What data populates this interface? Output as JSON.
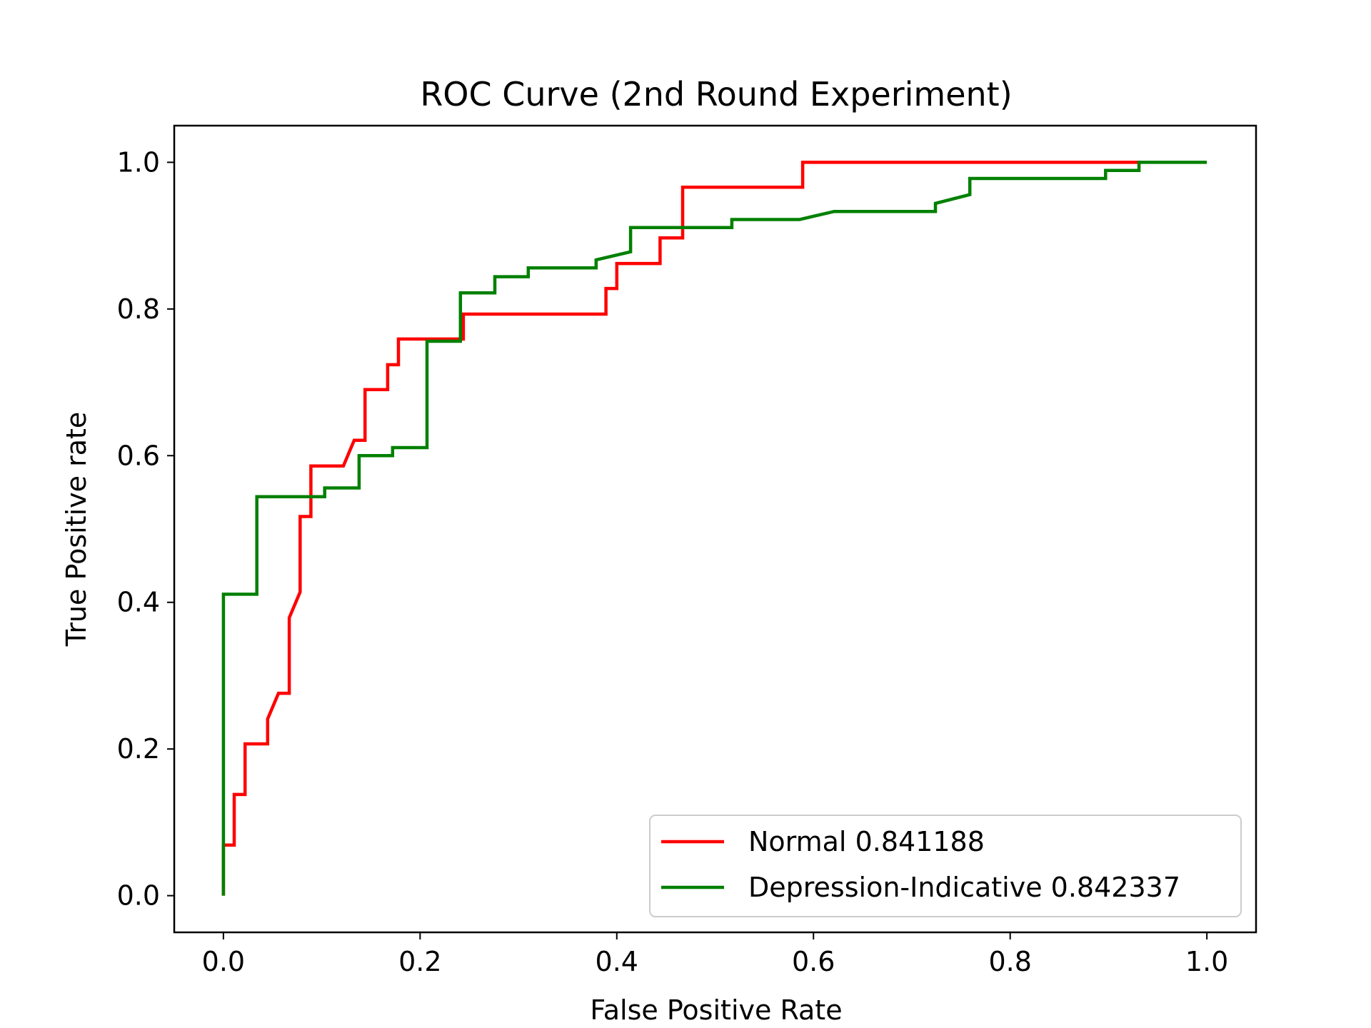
{
  "chart_data": {
    "type": "line",
    "title": "ROC Curve (2nd Round Experiment)",
    "xlabel": "False Positive Rate",
    "ylabel": "True Positive rate",
    "xlim": [
      -0.05,
      1.05
    ],
    "ylim": [
      -0.05,
      1.05
    ],
    "xticks": [
      "0.0",
      "0.2",
      "0.4",
      "0.6",
      "0.8",
      "1.0"
    ],
    "yticks": [
      "0.0",
      "0.2",
      "0.4",
      "0.6",
      "0.8",
      "1.0"
    ],
    "grid": false,
    "legend_position": "lower-right",
    "series": [
      {
        "name": "Normal 0.841188",
        "color": "#ff0000",
        "points": [
          [
            0.0,
            0.0
          ],
          [
            0.0,
            0.069
          ],
          [
            0.011,
            0.069
          ],
          [
            0.011,
            0.138
          ],
          [
            0.022,
            0.138
          ],
          [
            0.022,
            0.207
          ],
          [
            0.045,
            0.207
          ],
          [
            0.045,
            0.241
          ],
          [
            0.056,
            0.276
          ],
          [
            0.067,
            0.276
          ],
          [
            0.067,
            0.379
          ],
          [
            0.078,
            0.414
          ],
          [
            0.078,
            0.517
          ],
          [
            0.089,
            0.517
          ],
          [
            0.089,
            0.586
          ],
          [
            0.122,
            0.586
          ],
          [
            0.133,
            0.621
          ],
          [
            0.144,
            0.621
          ],
          [
            0.144,
            0.69
          ],
          [
            0.167,
            0.69
          ],
          [
            0.167,
            0.724
          ],
          [
            0.178,
            0.724
          ],
          [
            0.178,
            0.759
          ],
          [
            0.244,
            0.759
          ],
          [
            0.244,
            0.793
          ],
          [
            0.389,
            0.793
          ],
          [
            0.389,
            0.828
          ],
          [
            0.4,
            0.828
          ],
          [
            0.4,
            0.862
          ],
          [
            0.444,
            0.862
          ],
          [
            0.444,
            0.897
          ],
          [
            0.467,
            0.897
          ],
          [
            0.467,
            0.966
          ],
          [
            0.589,
            0.966
          ],
          [
            0.589,
            1.0
          ],
          [
            0.933,
            1.0
          ]
        ]
      },
      {
        "name": "Depression-Indicative 0.842337",
        "color": "#008000",
        "points": [
          [
            0.0,
            0.0
          ],
          [
            0.0,
            0.411
          ],
          [
            0.034,
            0.411
          ],
          [
            0.034,
            0.544
          ],
          [
            0.103,
            0.544
          ],
          [
            0.103,
            0.556
          ],
          [
            0.138,
            0.556
          ],
          [
            0.138,
            0.6
          ],
          [
            0.172,
            0.6
          ],
          [
            0.172,
            0.611
          ],
          [
            0.207,
            0.611
          ],
          [
            0.207,
            0.756
          ],
          [
            0.241,
            0.756
          ],
          [
            0.241,
            0.822
          ],
          [
            0.276,
            0.822
          ],
          [
            0.276,
            0.844
          ],
          [
            0.31,
            0.844
          ],
          [
            0.31,
            0.856
          ],
          [
            0.379,
            0.856
          ],
          [
            0.379,
            0.867
          ],
          [
            0.414,
            0.878
          ],
          [
            0.414,
            0.911
          ],
          [
            0.517,
            0.911
          ],
          [
            0.517,
            0.922
          ],
          [
            0.586,
            0.922
          ],
          [
            0.621,
            0.933
          ],
          [
            0.724,
            0.933
          ],
          [
            0.724,
            0.944
          ],
          [
            0.759,
            0.956
          ],
          [
            0.759,
            0.978
          ],
          [
            0.897,
            0.978
          ],
          [
            0.897,
            0.989
          ],
          [
            0.931,
            0.989
          ],
          [
            0.931,
            1.0
          ],
          [
            1.0,
            1.0
          ]
        ]
      }
    ]
  }
}
